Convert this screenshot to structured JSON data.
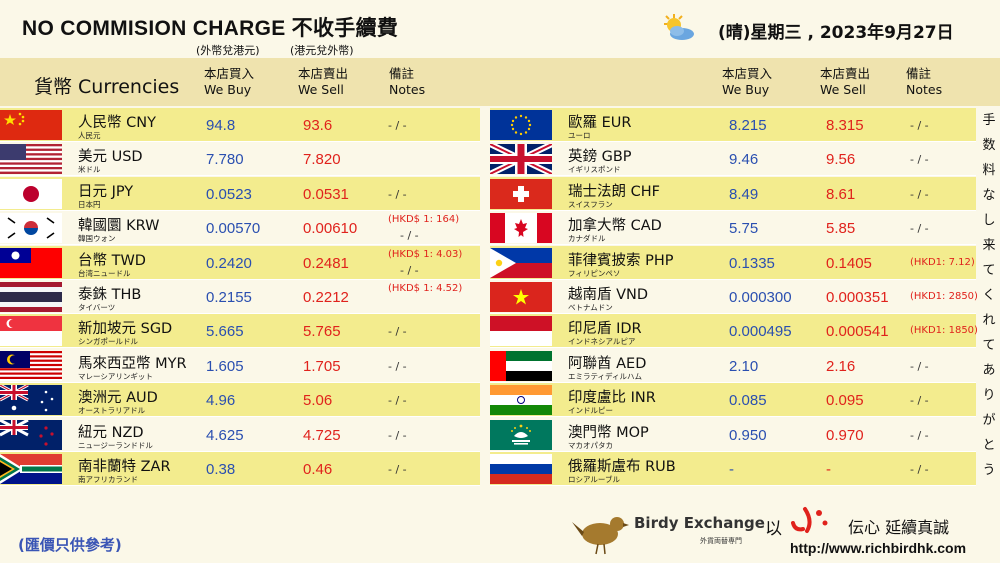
{
  "header": {
    "title": "NO COMMISION CHARGE 不收手續費",
    "sub_buy": "(外幣兌港元)",
    "sub_sell": "(港元兌外幣)",
    "weather_icon": "sun-cloud-icon",
    "date": "(晴)星期三 , 2023年9月27日"
  },
  "columns": {
    "currency": "貨幣 Currencies",
    "buy_line1": "本店買入",
    "buy_line2": "We Buy",
    "sell_line1": "本店賣出",
    "sell_line2": "We Sell",
    "notes_line1": "備註",
    "notes_line2": "Notes"
  },
  "left": [
    {
      "flag": "china-flag",
      "name": "人民幣 CNY",
      "jp": "人民元",
      "buy": "94.8",
      "sell": "93.6",
      "note": "- / -",
      "note2": ""
    },
    {
      "flag": "usa-flag",
      "name": "美元 USD",
      "jp": "米ドル",
      "buy": "7.780",
      "sell": "7.820",
      "note": "",
      "note2": ""
    },
    {
      "flag": "japan-flag",
      "name": "日元 JPY",
      "jp": "日本円",
      "buy": "0.0523",
      "sell": "0.0531",
      "note": "- / -",
      "note2": ""
    },
    {
      "flag": "korea-flag",
      "name": "韓國圜 KRW",
      "jp": "韓国ウォン",
      "buy": "0.00570",
      "sell": "0.00610",
      "note": "(HKD$ 1: 164)",
      "note2": "- / -"
    },
    {
      "flag": "taiwan-flag",
      "name": "台幣 TWD",
      "jp": "台湾ニュードル",
      "buy": "0.2420",
      "sell": "0.2481",
      "note": "(HKD$ 1: 4.03)",
      "note2": "- / -"
    },
    {
      "flag": "thailand-flag",
      "name": "泰銖 THB",
      "jp": "タイバーツ",
      "buy": "0.2155",
      "sell": "0.2212",
      "note": "(HKD$ 1: 4.52)",
      "note2": ""
    },
    {
      "flag": "singapore-flag",
      "name": "新加坡元 SGD",
      "jp": "シンガポールドル",
      "buy": "5.665",
      "sell": "5.765",
      "note": "- / -",
      "note2": ""
    },
    {
      "flag": "malaysia-flag",
      "name": "馬來西亞幣 MYR",
      "jp": "マレーシアリンギット",
      "buy": "1.605",
      "sell": "1.705",
      "note": "- / -",
      "note2": ""
    },
    {
      "flag": "australia-flag",
      "name": "澳洲元 AUD",
      "jp": "オーストラリアドル",
      "buy": "4.96",
      "sell": "5.06",
      "note": "- / -",
      "note2": ""
    },
    {
      "flag": "newzealand-flag",
      "name": "紐元 NZD",
      "jp": "ニュージーランドドル",
      "buy": "4.625",
      "sell": "4.725",
      "note": "- / -",
      "note2": ""
    },
    {
      "flag": "southafrica-flag",
      "name": "南非蘭特 ZAR",
      "jp": "南アフリカランド",
      "buy": "0.38",
      "sell": "0.46",
      "note": "- / -",
      "note2": ""
    }
  ],
  "right": [
    {
      "flag": "eu-flag",
      "name": "歐羅 EUR",
      "jp": "ユーロ",
      "buy": "8.215",
      "sell": "8.315",
      "note": "- / -"
    },
    {
      "flag": "uk-flag",
      "name": "英鎊 GBP",
      "jp": "イギリスポンド",
      "buy": "9.46",
      "sell": "9.56",
      "note": "- / -"
    },
    {
      "flag": "swiss-flag",
      "name": "瑞士法朗 CHF",
      "jp": "スイスフラン",
      "buy": "8.49",
      "sell": "8.61",
      "note": "- / -"
    },
    {
      "flag": "canada-flag",
      "name": "加拿大幣 CAD",
      "jp": "カナダドル",
      "buy": "5.75",
      "sell": "5.85",
      "note": "- / -"
    },
    {
      "flag": "philippines-flag",
      "name": "菲律賓披索 PHP",
      "jp": "フィリピンペソ",
      "buy": "0.1335",
      "sell": "0.1405",
      "note": "(HKD1: 7.12)"
    },
    {
      "flag": "vietnam-flag",
      "name": "越南盾 VND",
      "jp": "ベトナムドン",
      "buy": "0.000300",
      "sell": "0.000351",
      "note": "(HKD1: 2850)"
    },
    {
      "flag": "indonesia-flag",
      "name": "印尼盾 IDR",
      "jp": "インドネシアルピア",
      "buy": "0.000495",
      "sell": "0.000541",
      "note": "(HKD1: 1850)"
    },
    {
      "flag": "uae-flag",
      "name": "阿聯酋 AED",
      "jp": "エミラティディルハム",
      "buy": "2.10",
      "sell": "2.16",
      "note": "- / -"
    },
    {
      "flag": "india-flag",
      "name": "印度盧比 INR",
      "jp": "インドルピー",
      "buy": "0.085",
      "sell": "0.095",
      "note": "- / -"
    },
    {
      "flag": "macau-flag",
      "name": "澳門幣 MOP",
      "jp": "マカオパタカ",
      "buy": "0.950",
      "sell": "0.970",
      "note": "- / -"
    },
    {
      "flag": "russia-flag",
      "name": "俄羅斯盧布 RUB",
      "jp": "ロシアルーブル",
      "buy": "-",
      "sell": "-",
      "note": "- / -"
    }
  ],
  "side_text": [
    "手",
    "数",
    "料",
    "な",
    "し",
    "来",
    "て",
    "く",
    "れ",
    "て",
    "あ",
    "り",
    "が",
    "と",
    "う"
  ],
  "footer": {
    "disclaimer": "(匯價只供參考)",
    "logo_name": "Birdy Exchange",
    "logo_sub": "外貨両替専門",
    "slogan_a": "以",
    "slogan_b": "伝心 延續真誠",
    "url": "http://www.richbirdhk.com"
  },
  "colors": {
    "buy": "#2a4fb0",
    "sell": "#e0221c",
    "band": "#f3ec8e",
    "header_band": "#efe3ae"
  }
}
